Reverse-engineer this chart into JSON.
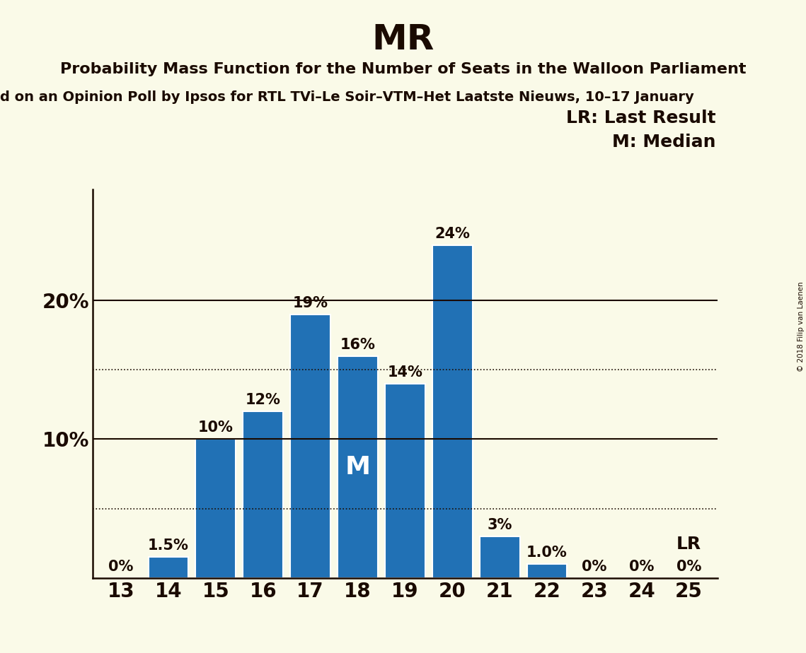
{
  "title": "MR",
  "subtitle": "Probability Mass Function for the Number of Seats in the Walloon Parliament",
  "subtitle2": "d on an Opinion Poll by Ipsos for RTL TVi–Le Soir–VTM–Het Laatste Nieuws, 10–17 January",
  "categories": [
    13,
    14,
    15,
    16,
    17,
    18,
    19,
    20,
    21,
    22,
    23,
    24,
    25
  ],
  "values": [
    0.0,
    1.5,
    10.0,
    12.0,
    19.0,
    16.0,
    14.0,
    24.0,
    3.0,
    1.0,
    0.0,
    0.0,
    0.0
  ],
  "bar_color": "#2171b5",
  "background_color": "#fafae8",
  "text_color": "#1a0a00",
  "bar_labels": [
    "0%",
    "1.5%",
    "10%",
    "12%",
    "19%",
    "16%",
    "14%",
    "24%",
    "3%",
    "1.0%",
    "0%",
    "0%",
    "0%"
  ],
  "dotted_lines": [
    5,
    15
  ],
  "solid_lines": [
    10,
    20
  ],
  "median_bar": 18,
  "lr_bar": 25,
  "legend_lr": "LR: Last Result",
  "legend_m": "M: Median",
  "copyright": "© 2018 Filip van Laenen",
  "title_fontsize": 36,
  "subtitle_fontsize": 16,
  "subtitle2_fontsize": 14,
  "bar_label_fontsize": 15,
  "axis_tick_fontsize": 20,
  "legend_fontsize": 18,
  "median_label": "M",
  "lr_label": "LR"
}
